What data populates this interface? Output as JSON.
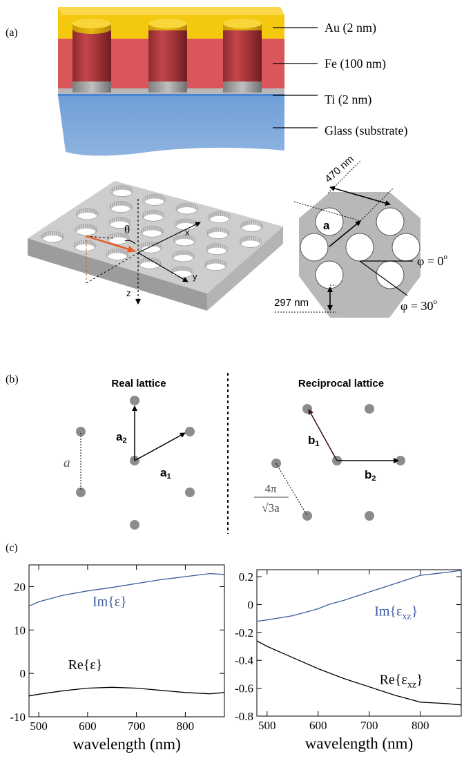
{
  "panel_a": {
    "label": "(a)",
    "layers": [
      {
        "label": "Au (2 nm)",
        "color": "#f5c810"
      },
      {
        "label": "Fe (100 nm)",
        "color": "#d9565a"
      },
      {
        "label": "Ti (2 nm)",
        "color": "#b8b8b8"
      },
      {
        "label": "Glass (substrate)",
        "color": "#7fa9db"
      }
    ],
    "axes3d": {
      "theta": "θ",
      "x": "x",
      "y": "y",
      "z": "z"
    },
    "hex": {
      "dim_period": "470 nm",
      "dim_diameter": "297 nm",
      "vector_label": "a",
      "phi0": "φ = 0",
      "phi30": "φ = 30",
      "degree_mark": "o"
    }
  },
  "panel_b": {
    "label": "(b)",
    "real_title": "Real lattice",
    "recip_title": "Reciprocal lattice",
    "real": {
      "a1": "a",
      "a1_sub": "1",
      "a2": "a",
      "a2_sub": "2",
      "spacing": "a"
    },
    "recip": {
      "b1": "b",
      "b1_sub": "1",
      "b2": "b",
      "b2_sub": "2",
      "spacing_num": "4π",
      "spacing_den": "√3a"
    }
  },
  "panel_c": {
    "label": "(c)"
  },
  "chart_data": [
    {
      "type": "line",
      "xlabel": "wavelength (nm)",
      "xlim": [
        480,
        880
      ],
      "ylim": [
        -10,
        25
      ],
      "xticks": [
        500,
        600,
        700,
        800
      ],
      "yticks": [
        -10,
        0,
        10,
        20
      ],
      "ytick_labels": [
        "-10",
        "0",
        "10",
        "20"
      ],
      "series": [
        {
          "name": "Im{ε}",
          "color": "#3a5a9e",
          "x": [
            480,
            500,
            550,
            600,
            650,
            700,
            750,
            800,
            850,
            880
          ],
          "y": [
            15.5,
            16.5,
            18.0,
            19.0,
            19.8,
            20.7,
            21.6,
            22.3,
            23.0,
            22.8
          ]
        },
        {
          "name": "Re{ε}",
          "color": "#000000",
          "x": [
            480,
            500,
            550,
            600,
            650,
            700,
            750,
            800,
            850,
            880
          ],
          "y": [
            -5.2,
            -4.8,
            -4.0,
            -3.4,
            -3.2,
            -3.4,
            -3.9,
            -4.4,
            -4.7,
            -4.4
          ]
        }
      ],
      "annotations": [
        {
          "text": "Im{ε}",
          "x": 610,
          "y": 15.5,
          "color": "#3a5a9e"
        },
        {
          "text": "Re{ε}",
          "x": 560,
          "y": 1.0,
          "color": "#000000"
        }
      ]
    },
    {
      "type": "line",
      "xlabel": "wavelength (nm)",
      "xlim": [
        480,
        880
      ],
      "ylim": [
        -0.8,
        0.25
      ],
      "xticks": [
        500,
        600,
        700,
        800
      ],
      "yticks": [
        -0.8,
        -0.6,
        -0.4,
        -0.2,
        0,
        0.2
      ],
      "ytick_labels": [
        "-0.8",
        "-0.6",
        "-0.4",
        "-0.2",
        "0",
        "0.2"
      ],
      "series": [
        {
          "name": "Im{ε_xz}",
          "color": "#3a5a9e",
          "x": [
            480,
            500,
            550,
            580,
            600,
            620,
            650,
            700,
            750,
            800,
            850,
            880
          ],
          "y": [
            -0.12,
            -0.11,
            -0.08,
            -0.05,
            -0.03,
            0.0,
            0.03,
            0.09,
            0.15,
            0.21,
            0.23,
            0.245
          ]
        },
        {
          "name": "Re{ε_xz}",
          "color": "#000000",
          "x": [
            480,
            500,
            550,
            600,
            650,
            700,
            750,
            800,
            850,
            880
          ],
          "y": [
            -0.26,
            -0.3,
            -0.38,
            -0.46,
            -0.53,
            -0.59,
            -0.65,
            -0.7,
            -0.71,
            -0.72
          ]
        }
      ],
      "annotations": [
        {
          "text": "Im{ε",
          "sub": "xz",
          "close": "}",
          "x": 710,
          "y": -0.08,
          "color": "#3a5a9e"
        },
        {
          "text": "Re{ε",
          "sub": "xz",
          "close": "}",
          "x": 720,
          "y": -0.57,
          "color": "#000000"
        }
      ]
    }
  ]
}
